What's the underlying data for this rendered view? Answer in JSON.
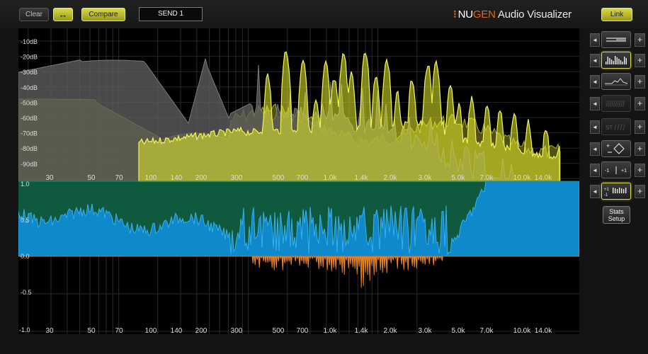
{
  "toolbar": {
    "clear_label": "Clear",
    "swap_icon_glyph": "↔",
    "compare_label": "Compare",
    "send_label": "SEND 1",
    "link_label": "Link"
  },
  "brand": {
    "prefix": "NU",
    "accent": "GEN",
    "suffix": " Audio Visualizer"
  },
  "spectrum": {
    "db_labels": [
      "-10dB",
      "-20dB",
      "-30dB",
      "-40dB",
      "-50dB",
      "-60dB",
      "-70dB",
      "-80dB",
      "-90dB"
    ],
    "freq_labels": [
      "30",
      "50",
      "70",
      "100",
      "140",
      "200",
      "300",
      "500",
      "700",
      "1.0k",
      "1.4k",
      "2.0k",
      "3.0k",
      "5.0k",
      "7.0k",
      "10.0k",
      "14.0k"
    ],
    "correlation_labels": [
      "1.0",
      "0.5",
      "0.0",
      "-0.5",
      "-1.0"
    ],
    "colors": {
      "background": "#000000",
      "grey_trace": "#5c5c5c",
      "yellow_trace": "#e6ec2a",
      "olive_fill": "#5e5e18",
      "teal_band": "#0f5a3e",
      "blue_fill": "#0f88cc",
      "blue_line": "#37b0ef",
      "orange_fill": "#e07818"
    }
  },
  "sidebar": {
    "rows": [
      {
        "mode_icon": "line-mode-icon",
        "state": "normal"
      },
      {
        "mode_icon": "bars-mode-icon",
        "state": "selected"
      },
      {
        "mode_icon": "spectrum-mode-icon",
        "state": "normal"
      },
      {
        "mode_icon": "waterfall-mode-icon",
        "state": "disabled"
      },
      {
        "mode_icon": "stereo-mode-icon",
        "state": "disabled",
        "text": "ST"
      },
      {
        "mode_icon": "vectorscope-mode-icon",
        "state": "normal"
      },
      {
        "mode_icon": "correlation-meter-icon",
        "state": "normal",
        "text": "-1 | +1"
      },
      {
        "mode_icon": "correlation-spectrum-icon",
        "state": "selected",
        "text": "+1 -1"
      }
    ],
    "stats_label_line1": "Stats",
    "stats_label_line2": "Setup"
  }
}
